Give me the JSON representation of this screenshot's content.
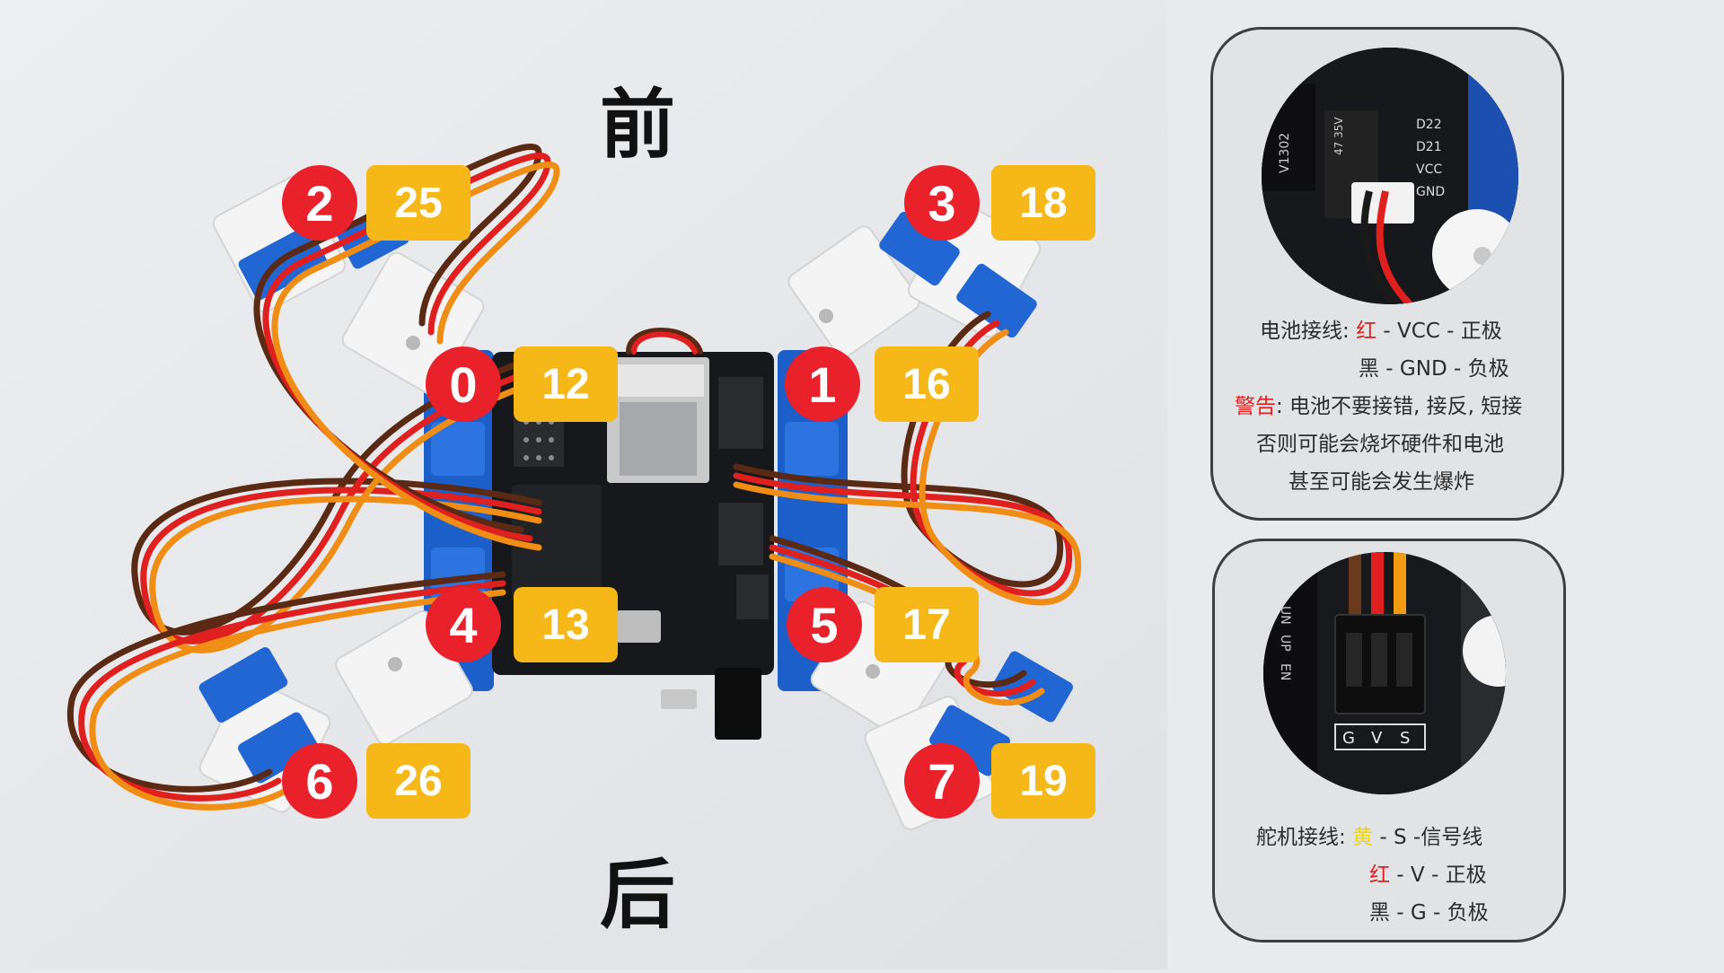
{
  "directions": {
    "front": "前",
    "back": "后"
  },
  "servos": [
    {
      "index": "0",
      "pin": "12"
    },
    {
      "index": "1",
      "pin": "16"
    },
    {
      "index": "2",
      "pin": "25"
    },
    {
      "index": "3",
      "pin": "18"
    },
    {
      "index": "4",
      "pin": "13"
    },
    {
      "index": "5",
      "pin": "17"
    },
    {
      "index": "6",
      "pin": "26"
    },
    {
      "index": "7",
      "pin": "19"
    }
  ],
  "battery_panel": {
    "board_labels": [
      "D22",
      "D21",
      "VCC",
      "GND",
      "V1302",
      "47 35V"
    ],
    "line1_prefix": "电池接线:",
    "line1_color_word": "红",
    "line1_suffix": " - VCC - 正极",
    "line2": "黑 - GND - 负极",
    "warning_word": "警告",
    "warning_text": ": 电池不要接错, 接反, 短接",
    "line4": "否则可能会烧坏硬件和电池",
    "line5": "甚至可能会发生爆炸"
  },
  "servo_panel": {
    "board_labels": [
      "G",
      "V",
      "S",
      "UN",
      "UP",
      "EN"
    ],
    "line1_prefix": "舵机接线:",
    "line1_color_word": "黄",
    "line1_suffix": " - S -信号线",
    "line2_color_word": "红",
    "line2_suffix": " - V - 正极",
    "line3": "黑 - G - 负极"
  },
  "colors": {
    "badge_red": "#e8212a",
    "badge_yellow": "#f6b819",
    "warning_red": "#e0201f",
    "signal_yellow": "#f0d800"
  }
}
